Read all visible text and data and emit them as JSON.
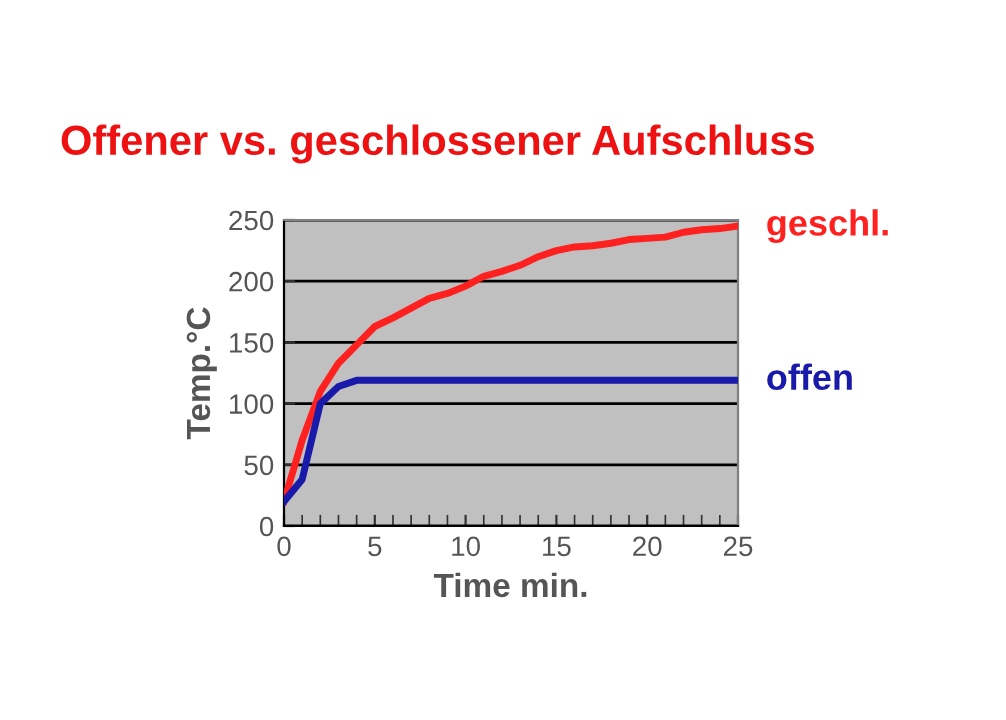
{
  "chart_data": {
    "type": "line",
    "title": "Offener vs. geschlossener Aufschluss",
    "xlabel": "Time min.",
    "ylabel": "Temp.°C",
    "series": [
      {
        "name": "geschl.",
        "color": "#ff2020",
        "x": [
          0,
          1,
          2,
          3,
          4,
          5,
          6,
          7,
          8,
          9,
          10,
          11,
          12,
          13,
          14,
          15,
          16,
          17,
          18,
          19,
          20,
          21,
          22,
          23,
          24,
          25
        ],
        "values": [
          20,
          70,
          110,
          133,
          148,
          163,
          170,
          178,
          186,
          190,
          196,
          204,
          208,
          213,
          220,
          225,
          228,
          229,
          231,
          234,
          235,
          236,
          240,
          242,
          243,
          245
        ]
      },
      {
        "name": "offen",
        "color": "#1a1aaa",
        "x": [
          0,
          1,
          2,
          3,
          4,
          5,
          10,
          15,
          20,
          25
        ],
        "values": [
          20,
          38,
          100,
          114,
          119,
          119,
          119,
          119,
          119,
          119
        ]
      }
    ],
    "xlim": [
      0,
      25
    ],
    "xticks": [
      0,
      5,
      10,
      15,
      20,
      25
    ],
    "ylim": [
      0,
      250
    ],
    "yticks": [
      0,
      50,
      100,
      150,
      200,
      250
    ],
    "grid": "y",
    "marker": "none",
    "line_style": "solid"
  }
}
